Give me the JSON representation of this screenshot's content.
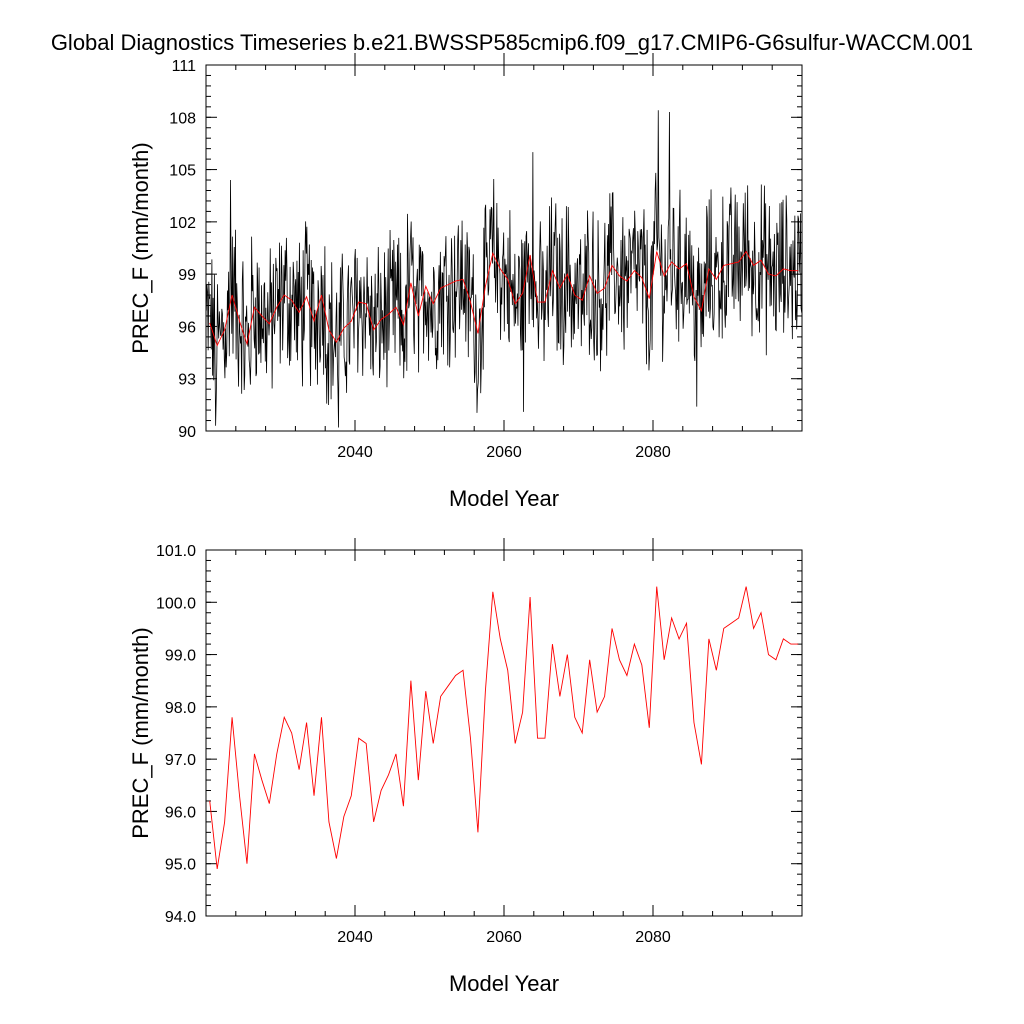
{
  "title": "Global Diagnostics Timeseries b.e21.BWSSP585cmip6.f09_g17.CMIP6-G6sulfur-WACCM.001",
  "colors": {
    "monthly": "#000000",
    "annual": "#ff0000"
  },
  "chart_data": [
    {
      "type": "line",
      "xlabel": "Model Year",
      "ylabel": "PREC_F (mm/month)",
      "xlim": [
        2020,
        2100
      ],
      "ylim": [
        90,
        111
      ],
      "xticks": [
        2040,
        2060,
        2080
      ],
      "xtick_labels": [
        "2040",
        "2060",
        "2080"
      ],
      "yticks": [
        90,
        93,
        96,
        99,
        102,
        105,
        108,
        111
      ],
      "ytick_labels": [
        "90",
        "93",
        "96",
        "99",
        "102",
        "105",
        "108",
        "111"
      ],
      "grid": false,
      "series": [
        {
          "role": "monthly",
          "x_start": 2020.04,
          "x_step": 0.0833333,
          "values": []
        },
        {
          "role": "annual",
          "x": [],
          "values": []
        }
      ]
    },
    {
      "type": "line",
      "xlabel": "Model Year",
      "ylabel": "PREC_F (mm/month)",
      "xlim": [
        2020,
        2100
      ],
      "ylim": [
        94,
        101
      ],
      "xticks": [
        2040,
        2060,
        2080
      ],
      "xtick_labels": [
        "2040",
        "2060",
        "2080"
      ],
      "yticks": [
        94,
        95,
        96,
        97,
        98,
        99,
        100,
        101
      ],
      "ytick_labels": [
        "94.0",
        "95.0",
        "96.0",
        "97.0",
        "98.0",
        "99.0",
        "100.0",
        "101.0"
      ],
      "grid": false,
      "series": [
        {
          "role": "annual",
          "x": [
            2020.5,
            2021.5,
            2022.5,
            2023.5,
            2024.5,
            2025.5,
            2026.5,
            2027.5,
            2028.5,
            2029.5,
            2030.5,
            2031.5,
            2032.5,
            2033.5,
            2034.5,
            2035.5,
            2036.5,
            2037.5,
            2038.5,
            2039.5,
            2040.5,
            2041.5,
            2042.5,
            2043.5,
            2044.5,
            2045.5,
            2046.5,
            2047.5,
            2048.5,
            2049.5,
            2050.5,
            2051.5,
            2052.5,
            2053.5,
            2054.5,
            2055.5,
            2056.5,
            2057.5,
            2058.5,
            2059.5,
            2060.5,
            2061.5,
            2062.5,
            2063.5,
            2064.5,
            2065.5,
            2066.5,
            2067.5,
            2068.5,
            2069.5,
            2070.5,
            2071.5,
            2072.5,
            2073.5,
            2074.5,
            2075.5,
            2076.5,
            2077.5,
            2078.5,
            2079.5,
            2080.5,
            2081.5,
            2082.5,
            2083.5,
            2084.5,
            2085.5,
            2086.5,
            2087.5,
            2088.5,
            2089.5,
            2090.5,
            2091.5,
            2092.5,
            2093.5,
            2094.5,
            2095.5,
            2096.5,
            2097.5,
            2098.5,
            2099.5
          ],
          "values": [
            96.2,
            94.9,
            95.8,
            97.8,
            96.3,
            95.0,
            97.1,
            96.6,
            96.15,
            97.1,
            97.8,
            97.5,
            96.8,
            97.7,
            96.3,
            97.8,
            95.8,
            95.1,
            95.9,
            96.3,
            97.4,
            97.3,
            95.8,
            96.4,
            96.7,
            97.1,
            96.1,
            98.5,
            96.6,
            98.3,
            97.3,
            98.2,
            98.4,
            98.6,
            98.7,
            97.4,
            95.6,
            98.3,
            100.2,
            99.3,
            98.7,
            97.3,
            97.9,
            100.1,
            97.4,
            97.4,
            99.2,
            98.2,
            99.0,
            97.8,
            97.5,
            98.9,
            97.9,
            98.2,
            99.5,
            98.9,
            98.6,
            99.2,
            98.8,
            97.6,
            100.3,
            98.9,
            99.7,
            99.3,
            99.6,
            97.7,
            96.9,
            99.3,
            98.7,
            99.5,
            99.6,
            99.7,
            100.3,
            99.5,
            99.8,
            99.0,
            98.9,
            99.3,
            99.2,
            99.2
          ]
        }
      ]
    }
  ]
}
